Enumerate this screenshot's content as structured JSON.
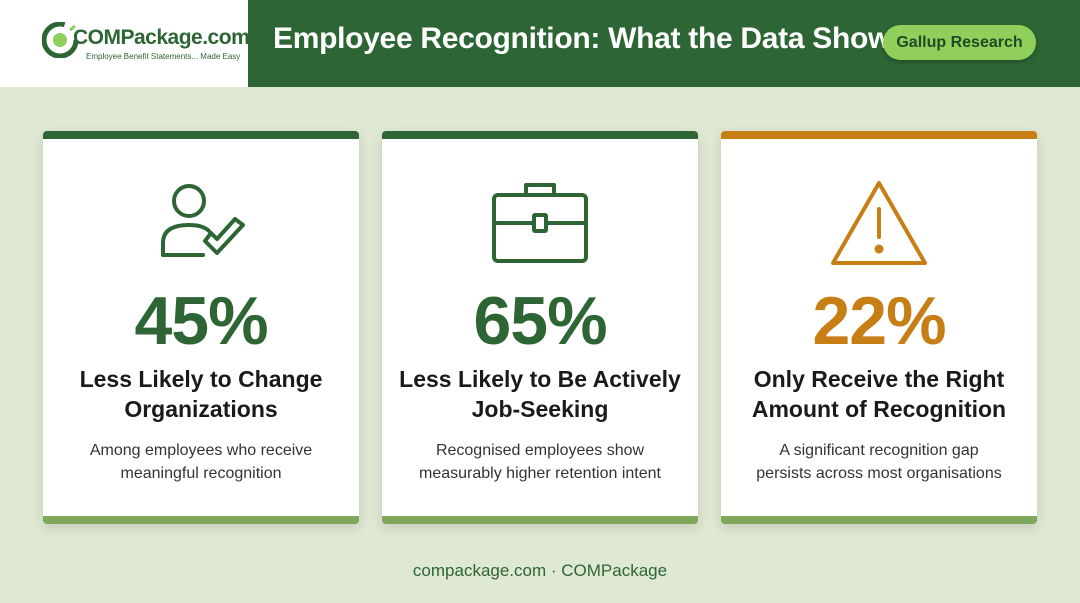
{
  "brand": {
    "name": "COMPackage.com",
    "trademark": "®",
    "tagline": "Employee Benefit Statements... Made Easy"
  },
  "header": {
    "title": "Employee Recognition: What the Data Shows",
    "badge": "Gallup Research"
  },
  "colors": {
    "primary_green": "#2d6534",
    "accent_orange": "#c77e15",
    "badge_green": "#8fcf5a",
    "background": "#dfe8d3"
  },
  "cards": [
    {
      "icon": "user-check-icon",
      "stat": "45%",
      "heading_line1": "Less Likely to Change",
      "heading_line2": "Organizations",
      "desc_line1": "Among employees who receive",
      "desc_line2": "meaningful recognition"
    },
    {
      "icon": "briefcase-icon",
      "stat": "65%",
      "heading_line1": "Less Likely to Be Actively",
      "heading_line2": "Job-Seeking",
      "desc_line1": "Recognised employees show",
      "desc_line2": "measurably higher retention intent"
    },
    {
      "icon": "warning-icon",
      "stat": "22%",
      "heading_line1": "Only Receive the Right",
      "heading_line2": "Amount of Recognition",
      "desc_line1": "A significant recognition gap",
      "desc_line2": "persists across most organisations"
    }
  ],
  "footer": {
    "text": "compackage.com · COMPackage"
  }
}
